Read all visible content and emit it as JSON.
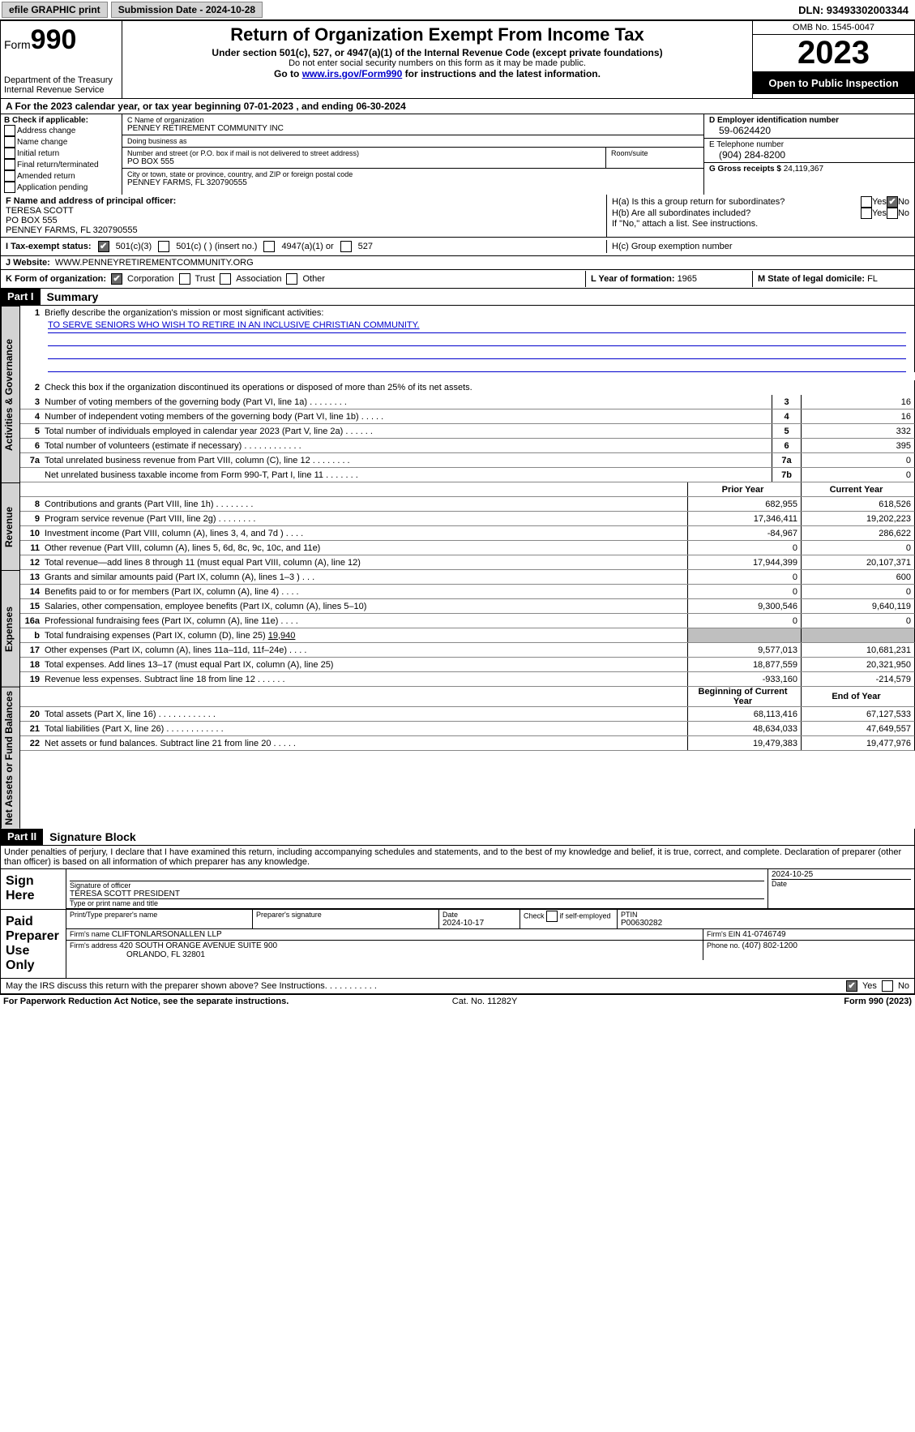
{
  "topbar": {
    "efile": "efile GRAPHIC print",
    "submission": "Submission Date - 2024-10-28",
    "dln": "DLN: 93493302003344"
  },
  "header": {
    "form_label": "Form",
    "form_number": "990",
    "dept": "Department of the Treasury",
    "irs": "Internal Revenue Service",
    "title": "Return of Organization Exempt From Income Tax",
    "sub1": "Under section 501(c), 527, or 4947(a)(1) of the Internal Revenue Code (except private foundations)",
    "sub2": "Do not enter social security numbers on this form as it may be made public.",
    "sub3_pre": "Go to ",
    "sub3_link": "www.irs.gov/Form990",
    "sub3_post": " for instructions and the latest information.",
    "omb": "OMB No. 1545-0047",
    "year": "2023",
    "open": "Open to Public Inspection"
  },
  "period": "A   For the 2023 calendar year, or tax year beginning 07-01-2023    , and ending 06-30-2024",
  "colB": {
    "label": "B Check if applicable:",
    "items": [
      "Address change",
      "Name change",
      "Initial return",
      "Final return/terminated",
      "Amended return",
      "Application pending"
    ]
  },
  "colC": {
    "name_label": "C Name of organization",
    "name": "PENNEY RETIREMENT COMMUNITY INC",
    "dba_label": "Doing business as",
    "dba": "",
    "addr_label": "Number and street (or P.O. box if mail is not delivered to street address)",
    "addr": "PO BOX 555",
    "room_label": "Room/suite",
    "city_label": "City or town, state or province, country, and ZIP or foreign postal code",
    "city": "PENNEY FARMS, FL   320790555"
  },
  "colD": {
    "ein_label": "D Employer identification number",
    "ein": "59-0624420",
    "phone_label": "E Telephone number",
    "phone": "(904) 284-8200",
    "gross_label": "G Gross receipts $ ",
    "gross": "24,119,367"
  },
  "officer": {
    "label": "F   Name and address of principal officer:",
    "name": "TERESA SCOTT",
    "addr1": "PO BOX 555",
    "addr2": "PENNEY FARMS, FL   320790555"
  },
  "ha": {
    "a_label": "H(a)  Is this a group return for subordinates?",
    "b_label": "H(b)  Are all subordinates included?",
    "b_note": "If \"No,\" attach a list. See instructions.",
    "c_label": "H(c)  Group exemption number "
  },
  "taxstatus": {
    "label": "I     Tax-exempt status:",
    "c3": "501(c)(3)",
    "c": "501(c) (   ) (insert no.)",
    "a1": "4947(a)(1) or",
    "s527": "527"
  },
  "website": {
    "label": "J    Website: ",
    "url": "WWW.PENNEYRETIREMENTCOMMUNITY.ORG"
  },
  "formorg": {
    "label": "K Form of organization:",
    "corp": "Corporation",
    "trust": "Trust",
    "assoc": "Association",
    "other": "Other"
  },
  "yearform": {
    "label": "L Year of formation: ",
    "val": "1965"
  },
  "domicile": {
    "label": "M State of legal domicile: ",
    "val": "FL"
  },
  "part1": {
    "header": "Part I",
    "title": "Summary"
  },
  "vtabs": {
    "ag": "Activities & Governance",
    "rev": "Revenue",
    "exp": "Expenses",
    "net": "Net Assets or Fund Balances"
  },
  "summary": {
    "line1_label": "Briefly describe the organization's mission or most significant activities:",
    "mission": "TO SERVE SENIORS WHO WISH TO RETIRE IN AN INCLUSIVE CHRISTIAN COMMUNITY.",
    "line2": "Check this box       if the organization discontinued its operations or disposed of more than 25% of its net assets.",
    "lines": [
      {
        "n": "3",
        "d": "Number of voting members of the governing body (Part VI, line 1a)   .    .    .    .    .    .    .    .",
        "b": "3",
        "v": "16"
      },
      {
        "n": "4",
        "d": "Number of independent voting members of the governing body (Part VI, line 1b)   .    .    .    .    .",
        "b": "4",
        "v": "16"
      },
      {
        "n": "5",
        "d": "Total number of individuals employed in calendar year 2023 (Part V, line 2a)   .    .    .    .    .    .",
        "b": "5",
        "v": "332"
      },
      {
        "n": "6",
        "d": "Total number of volunteers (estimate if necessary)   .    .    .    .    .    .    .    .    .    .    .    .",
        "b": "6",
        "v": "395"
      },
      {
        "n": "7a",
        "d": "Total unrelated business revenue from Part VIII, column (C), line 12   .    .    .    .    .    .    .    .",
        "b": "7a",
        "v": "0"
      },
      {
        "n": "",
        "d": "Net unrelated business taxable income from Form 990-T, Part I, line 11   .    .    .    .    .    .    .",
        "b": "7b",
        "v": "0"
      }
    ],
    "prior": "Prior Year",
    "current": "Current Year",
    "rev_lines": [
      {
        "n": "8",
        "d": "Contributions and grants (Part VIII, line 1h)   .    .    .    .    .    .    .    .",
        "p": "682,955",
        "c": "618,526"
      },
      {
        "n": "9",
        "d": "Program service revenue (Part VIII, line 2g)   .    .    .    .    .    .    .    .",
        "p": "17,346,411",
        "c": "19,202,223"
      },
      {
        "n": "10",
        "d": "Investment income (Part VIII, column (A), lines 3, 4, and 7d )    .    .    .    .",
        "p": "-84,967",
        "c": "286,622"
      },
      {
        "n": "11",
        "d": "Other revenue (Part VIII, column (A), lines 5, 6d, 8c, 9c, 10c, and 11e)",
        "p": "0",
        "c": "0"
      },
      {
        "n": "12",
        "d": "Total revenue—add lines 8 through 11 (must equal Part VIII, column (A), line 12)",
        "p": "17,944,399",
        "c": "20,107,371"
      }
    ],
    "exp_lines": [
      {
        "n": "13",
        "d": "Grants and similar amounts paid (Part IX, column (A), lines 1–3 )   .    .    .",
        "p": "0",
        "c": "600"
      },
      {
        "n": "14",
        "d": "Benefits paid to or for members (Part IX, column (A), line 4)   .    .    .    .",
        "p": "0",
        "c": "0"
      },
      {
        "n": "15",
        "d": "Salaries, other compensation, employee benefits (Part IX, column (A), lines 5–10)",
        "p": "9,300,546",
        "c": "9,640,119"
      },
      {
        "n": "16a",
        "d": "Professional fundraising fees (Part IX, column (A), line 11e)   .    .    .    .",
        "p": "0",
        "c": "0"
      }
    ],
    "line16b_pre": "Total fundraising expenses (Part IX, column (D), line 25) ",
    "line16b_val": "19,940",
    "exp_lines2": [
      {
        "n": "17",
        "d": "Other expenses (Part IX, column (A), lines 11a–11d, 11f–24e)   .    .    .    .",
        "p": "9,577,013",
        "c": "10,681,231"
      },
      {
        "n": "18",
        "d": "Total expenses. Add lines 13–17 (must equal Part IX, column (A), line 25)",
        "p": "18,877,559",
        "c": "20,321,950"
      },
      {
        "n": "19",
        "d": "Revenue less expenses. Subtract line 18 from line 12   .    .    .    .    .    .",
        "p": "-933,160",
        "c": "-214,579"
      }
    ],
    "begin": "Beginning of Current Year",
    "end": "End of Year",
    "net_lines": [
      {
        "n": "20",
        "d": "Total assets (Part X, line 16)   .    .    .    .    .    .    .    .    .    .    .    .",
        "p": "68,113,416",
        "c": "67,127,533"
      },
      {
        "n": "21",
        "d": "Total liabilities (Part X, line 26)   .    .    .    .    .    .    .    .    .    .    .    .",
        "p": "48,634,033",
        "c": "47,649,557"
      },
      {
        "n": "22",
        "d": "Net assets or fund balances. Subtract line 21 from line 20   .    .    .    .    .",
        "p": "19,479,383",
        "c": "19,477,976"
      }
    ]
  },
  "part2": {
    "header": "Part II",
    "title": "Signature Block"
  },
  "penalties": "Under penalties of perjury, I declare that I have examined this return, including accompanying schedules and statements, and to the best of my knowledge and belief, it is true, correct, and complete. Declaration of preparer (other than officer) is based on all information of which preparer has any knowledge.",
  "sign": {
    "here": "Sign Here",
    "sig_label": "Signature of officer",
    "officer": "TERESA SCOTT  PRESIDENT",
    "type_label": "Type or print name and title",
    "date_label": "Date",
    "date": "2024-10-25"
  },
  "paid": {
    "label": "Paid Preparer Use Only",
    "name_label": "Print/Type preparer's name",
    "sig_label": "Preparer's signature",
    "date_label": "Date",
    "date": "2024-10-17",
    "check_label": "Check         if self-employed",
    "ptin_label": "PTIN",
    "ptin": "P00630282",
    "firm_name_label": "Firm's name    ",
    "firm_name": "CLIFTONLARSONALLEN LLP",
    "firm_ein_label": "Firm's EIN ",
    "firm_ein": "41-0746749",
    "firm_addr_label": "Firm's address ",
    "firm_addr1": "420 SOUTH ORANGE AVENUE SUITE 900",
    "firm_addr2": "ORLANDO, FL  32801",
    "phone_label": "Phone no. ",
    "phone": "(407) 802-1200"
  },
  "discuss": "May the IRS discuss this return with the preparer shown above? See Instructions.    .    .    .    .    .    .    .    .    .    .",
  "footer": {
    "left": "For Paperwork Reduction Act Notice, see the separate instructions.",
    "mid": "Cat. No. 11282Y",
    "right": "Form 990 (2023)"
  },
  "yes": "Yes",
  "no": "No"
}
